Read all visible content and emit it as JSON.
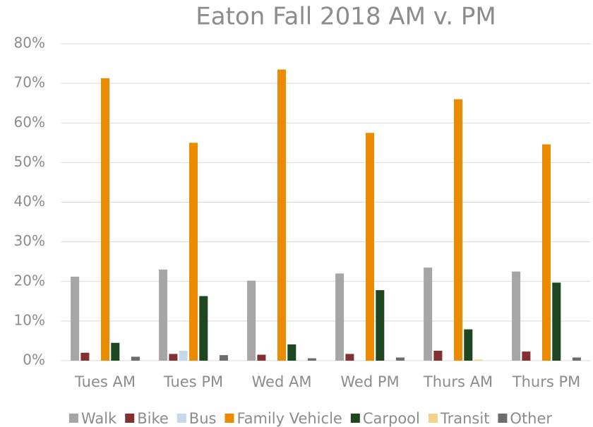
{
  "chart_data": {
    "type": "bar",
    "title": "Eaton Fall 2018 AM v. PM",
    "categories": [
      "Tues AM",
      "Tues PM",
      "Wed AM",
      "Wed PM",
      "Thurs AM",
      "Thurs PM"
    ],
    "series": [
      {
        "name": "Walk",
        "color": "#a6a6a6",
        "values": [
          21.2,
          23,
          20.2,
          22,
          23.5,
          22.5
        ]
      },
      {
        "name": "Bike",
        "color": "#843030",
        "values": [
          2,
          1.7,
          1.5,
          1.7,
          2.5,
          2.3
        ]
      },
      {
        "name": "Bus",
        "color": "#c5d8ec",
        "values": [
          0,
          2.5,
          0,
          0,
          0,
          0
        ]
      },
      {
        "name": "Family Vehicle",
        "color": "#ed8b00",
        "values": [
          71.3,
          55,
          73.5,
          57.5,
          66,
          54.6
        ]
      },
      {
        "name": "Carpool",
        "color": "#1e4620",
        "values": [
          4.5,
          16.3,
          4.1,
          17.8,
          7.9,
          19.7
        ]
      },
      {
        "name": "Transit",
        "color": "#f2d38a",
        "values": [
          0,
          0,
          0,
          0,
          0.3,
          0
        ]
      },
      {
        "name": "Other",
        "color": "#6d6d6d",
        "values": [
          1,
          1.4,
          0.6,
          0.8,
          0,
          0.8
        ]
      }
    ],
    "ylim": [
      0,
      80
    ],
    "yticks": [
      {
        "value": 0,
        "label": "0%"
      },
      {
        "value": 10,
        "label": "10%"
      },
      {
        "value": 20,
        "label": "20%"
      },
      {
        "value": 30,
        "label": "30%"
      },
      {
        "value": 40,
        "label": "40%"
      },
      {
        "value": 50,
        "label": "50%"
      },
      {
        "value": 60,
        "label": "60%"
      },
      {
        "value": 70,
        "label": "70%"
      },
      {
        "value": 80,
        "label": "80%"
      }
    ],
    "grid": true,
    "legend": "bottom"
  }
}
